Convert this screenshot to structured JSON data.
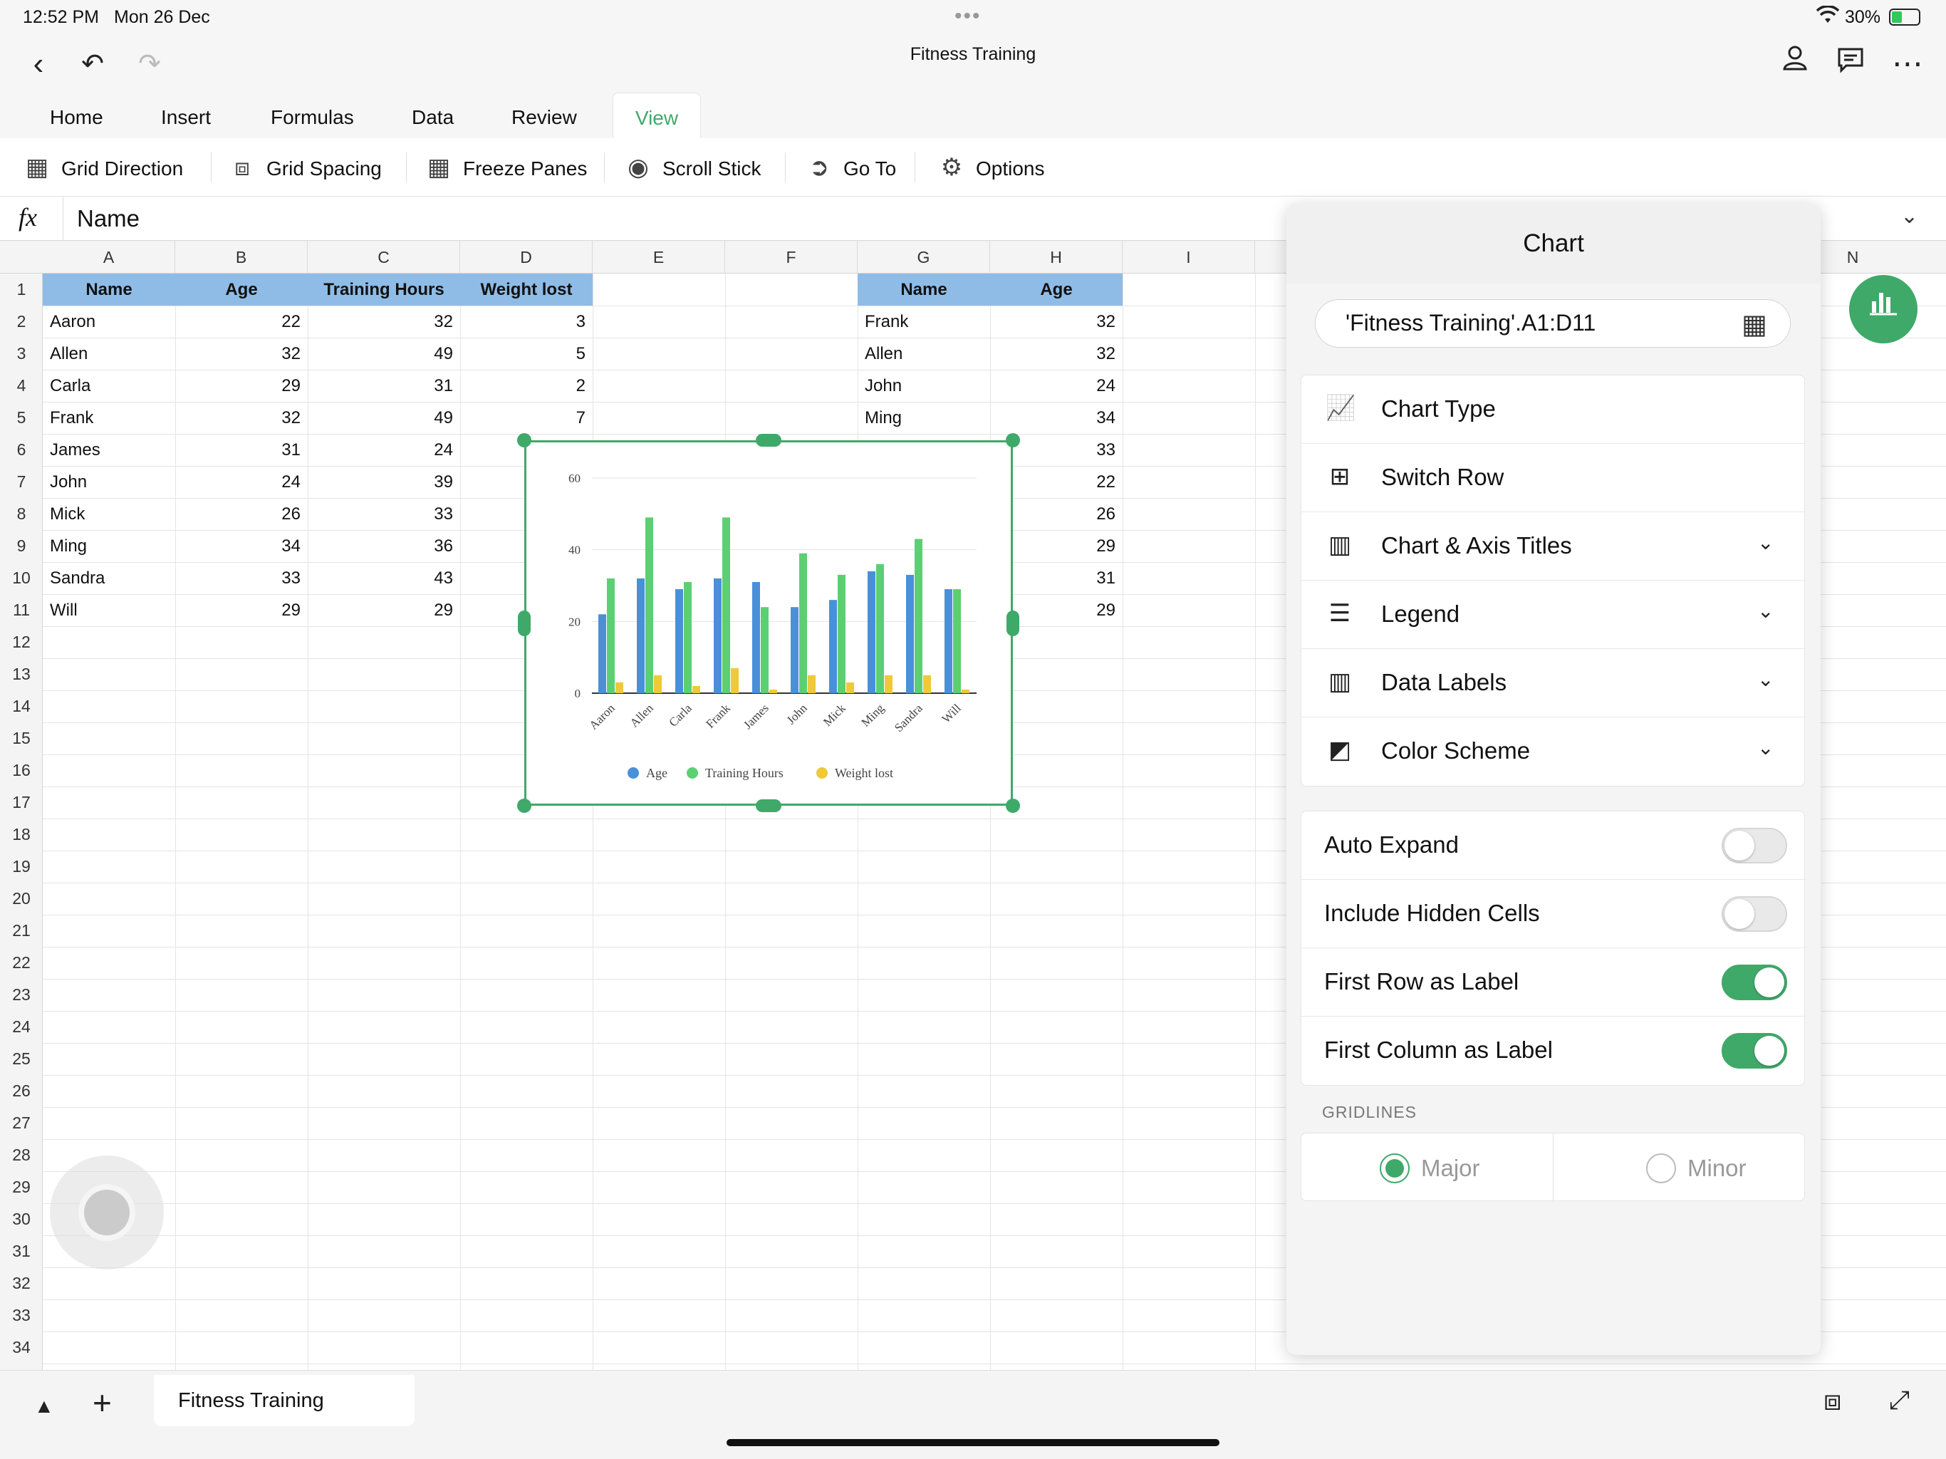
{
  "status": {
    "time": "12:52 PM",
    "date": "Mon 26 Dec",
    "battery": "30%"
  },
  "title": "Fitness Training",
  "tabs": [
    "Home",
    "Insert",
    "Formulas",
    "Data",
    "Review",
    "View"
  ],
  "active_tab": "View",
  "toolbar": {
    "grid_direction": "Grid Direction",
    "grid_spacing": "Grid Spacing",
    "freeze_panes": "Freeze Panes",
    "scroll_stick": "Scroll Stick",
    "go_to": "Go To",
    "options": "Options"
  },
  "formula": {
    "fx": "fx",
    "value": "Name"
  },
  "columns": [
    "A",
    "B",
    "C",
    "D",
    "E",
    "F",
    "G",
    "H",
    "I",
    "N"
  ],
  "rows": [
    "1",
    "2",
    "3",
    "4",
    "5",
    "6",
    "7",
    "8",
    "9",
    "10",
    "11",
    "12",
    "13",
    "14",
    "15",
    "16",
    "17",
    "18",
    "19",
    "20",
    "21",
    "22",
    "23",
    "24",
    "25",
    "26",
    "27",
    "28",
    "29",
    "30",
    "31",
    "32",
    "33",
    "34"
  ],
  "table1": {
    "headers": [
      "Name",
      "Age",
      "Training Hours",
      "Weight lost"
    ],
    "rows": [
      [
        "Aaron",
        "22",
        "32",
        "3"
      ],
      [
        "Allen",
        "32",
        "49",
        "5"
      ],
      [
        "Carla",
        "29",
        "31",
        "2"
      ],
      [
        "Frank",
        "32",
        "49",
        "7"
      ],
      [
        "James",
        "31",
        "24",
        "1"
      ],
      [
        "John",
        "24",
        "39",
        "5"
      ],
      [
        "Mick",
        "26",
        "33",
        "3"
      ],
      [
        "Ming",
        "34",
        "36",
        "5"
      ],
      [
        "Sandra",
        "33",
        "43",
        "5"
      ],
      [
        "Will",
        "29",
        "29",
        "1"
      ]
    ]
  },
  "table2": {
    "headers": [
      "Name",
      "Age"
    ],
    "rows": [
      [
        "Frank",
        "32"
      ],
      [
        "Allen",
        "32"
      ],
      [
        "John",
        "24"
      ],
      [
        "Ming",
        "34"
      ],
      [
        "Sandra",
        "33"
      ],
      [
        "Aaron",
        "22"
      ],
      [
        "Mick",
        "26"
      ],
      [
        "Carla",
        "29"
      ],
      [
        "James",
        "31"
      ],
      [
        "Will",
        "29"
      ]
    ]
  },
  "chart_data": {
    "type": "bar",
    "categories": [
      "Aaron",
      "Allen",
      "Carla",
      "Frank",
      "James",
      "John",
      "Mick",
      "Ming",
      "Sandra",
      "Will"
    ],
    "series": [
      {
        "name": "Age",
        "color": "#4a90d9",
        "values": [
          22,
          32,
          29,
          32,
          31,
          24,
          26,
          34,
          33,
          29
        ]
      },
      {
        "name": "Training Hours",
        "color": "#5ccf73",
        "values": [
          32,
          49,
          31,
          49,
          24,
          39,
          33,
          36,
          43,
          29
        ]
      },
      {
        "name": "Weight lost",
        "color": "#f0c93a",
        "values": [
          3,
          5,
          2,
          7,
          1,
          5,
          3,
          5,
          5,
          1
        ]
      }
    ],
    "yticks": [
      "0",
      "20",
      "40",
      "60"
    ],
    "ylim": [
      0,
      60
    ],
    "grid": true,
    "legend_position": "bottom"
  },
  "panel": {
    "title": "Chart",
    "range": "'Fitness Training'.A1:D11",
    "menu": [
      {
        "label": "Chart Type",
        "icon": "chart-type-icon",
        "chevron": false
      },
      {
        "label": "Switch Row",
        "icon": "switch-row-icon",
        "chevron": false
      },
      {
        "label": "Chart & Axis Titles",
        "icon": "axis-titles-icon",
        "chevron": true
      },
      {
        "label": "Legend",
        "icon": "legend-icon",
        "chevron": true
      },
      {
        "label": "Data Labels",
        "icon": "data-labels-icon",
        "chevron": true
      },
      {
        "label": "Color Scheme",
        "icon": "color-scheme-icon",
        "chevron": true
      }
    ],
    "toggles": [
      {
        "label": "Auto Expand",
        "on": false
      },
      {
        "label": "Include Hidden Cells",
        "on": false
      },
      {
        "label": "First Row as Label",
        "on": true
      },
      {
        "label": "First Column as Label",
        "on": true
      }
    ],
    "gridlines_label": "GRIDLINES",
    "gridlines": {
      "major": "Major",
      "minor": "Minor",
      "selected": "Major"
    }
  },
  "accent_color": "#3fa96a",
  "sheet_tab": "Fitness Training"
}
